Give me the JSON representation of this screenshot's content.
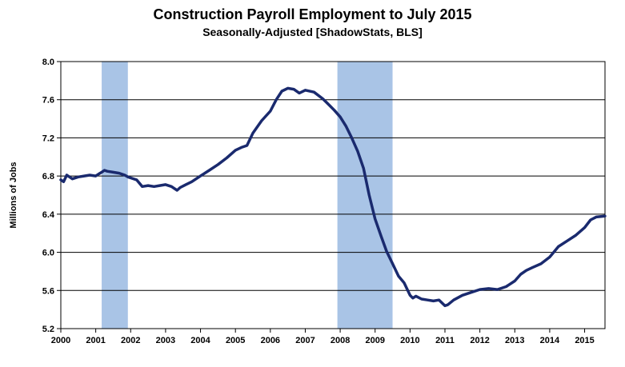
{
  "chart_data": {
    "type": "line",
    "title": "Construction Payroll Employment to July 2015",
    "subtitle": "Seasonally-Adjusted [ShadowStats, BLS]",
    "ylabel": "Millions of Jobs",
    "xlabel": "",
    "ylim": [
      5.2,
      8.0
    ],
    "xlim": [
      2000,
      2015.583
    ],
    "y_ticks": [
      "5.2",
      "5.6",
      "6.0",
      "6.4",
      "6.8",
      "7.2",
      "7.6",
      "8.0"
    ],
    "x_ticks": [
      "2000",
      "2001",
      "2002",
      "2003",
      "2004",
      "2005",
      "2006",
      "2007",
      "2008",
      "2009",
      "2010",
      "2011",
      "2012",
      "2013",
      "2014",
      "2015"
    ],
    "grid": "horizontal",
    "line_color": "#1a2a6e",
    "recession_color": "#a9c4e6",
    "recessions": [
      [
        2001.17,
        2001.92
      ],
      [
        2007.92,
        2009.5
      ]
    ],
    "series": [
      {
        "x": [
          2000.0,
          2000.08,
          2000.17,
          2000.25,
          2000.33,
          2000.5,
          2000.67,
          2000.83,
          2001.0,
          2001.08,
          2001.17,
          2001.25,
          2001.33,
          2001.5,
          2001.67,
          2001.83,
          2001.92,
          2002.0,
          2002.17,
          2002.33,
          2002.5,
          2002.67,
          2002.83,
          2003.0,
          2003.17,
          2003.25,
          2003.33,
          2003.42,
          2003.58,
          2003.75,
          2004.0,
          2004.25,
          2004.5,
          2004.75,
          2005.0,
          2005.17,
          2005.33,
          2005.5,
          2005.75,
          2006.0,
          2006.17,
          2006.33,
          2006.5,
          2006.67,
          2006.83,
          2007.0,
          2007.25,
          2007.5,
          2007.67,
          2007.83,
          2008.0,
          2008.17,
          2008.33,
          2008.5,
          2008.67,
          2008.83,
          2009.0,
          2009.17,
          2009.33,
          2009.5,
          2009.67,
          2009.83,
          2010.0,
          2010.08,
          2010.17,
          2010.33,
          2010.5,
          2010.67,
          2010.83,
          2011.0,
          2011.08,
          2011.25,
          2011.5,
          2011.75,
          2012.0,
          2012.25,
          2012.5,
          2012.75,
          2013.0,
          2013.17,
          2013.33,
          2013.5,
          2013.75,
          2014.0,
          2014.25,
          2014.5,
          2014.75,
          2015.0,
          2015.17,
          2015.33,
          2015.58
        ],
        "y": [
          6.76,
          6.74,
          6.81,
          6.79,
          6.77,
          6.79,
          6.8,
          6.81,
          6.8,
          6.82,
          6.84,
          6.86,
          6.85,
          6.84,
          6.83,
          6.81,
          6.79,
          6.78,
          6.76,
          6.69,
          6.7,
          6.69,
          6.7,
          6.71,
          6.69,
          6.67,
          6.65,
          6.68,
          6.71,
          6.74,
          6.8,
          6.86,
          6.92,
          6.99,
          7.07,
          7.1,
          7.12,
          7.25,
          7.38,
          7.48,
          7.6,
          7.69,
          7.72,
          7.71,
          7.67,
          7.7,
          7.68,
          7.61,
          7.55,
          7.49,
          7.42,
          7.32,
          7.2,
          7.06,
          6.88,
          6.6,
          6.35,
          6.17,
          6.01,
          5.88,
          5.75,
          5.68,
          5.55,
          5.52,
          5.54,
          5.51,
          5.5,
          5.49,
          5.5,
          5.44,
          5.45,
          5.5,
          5.55,
          5.58,
          5.61,
          5.62,
          5.61,
          5.64,
          5.7,
          5.77,
          5.81,
          5.84,
          5.88,
          5.95,
          6.06,
          6.12,
          6.18,
          6.26,
          6.34,
          6.37,
          6.38
        ]
      }
    ]
  }
}
